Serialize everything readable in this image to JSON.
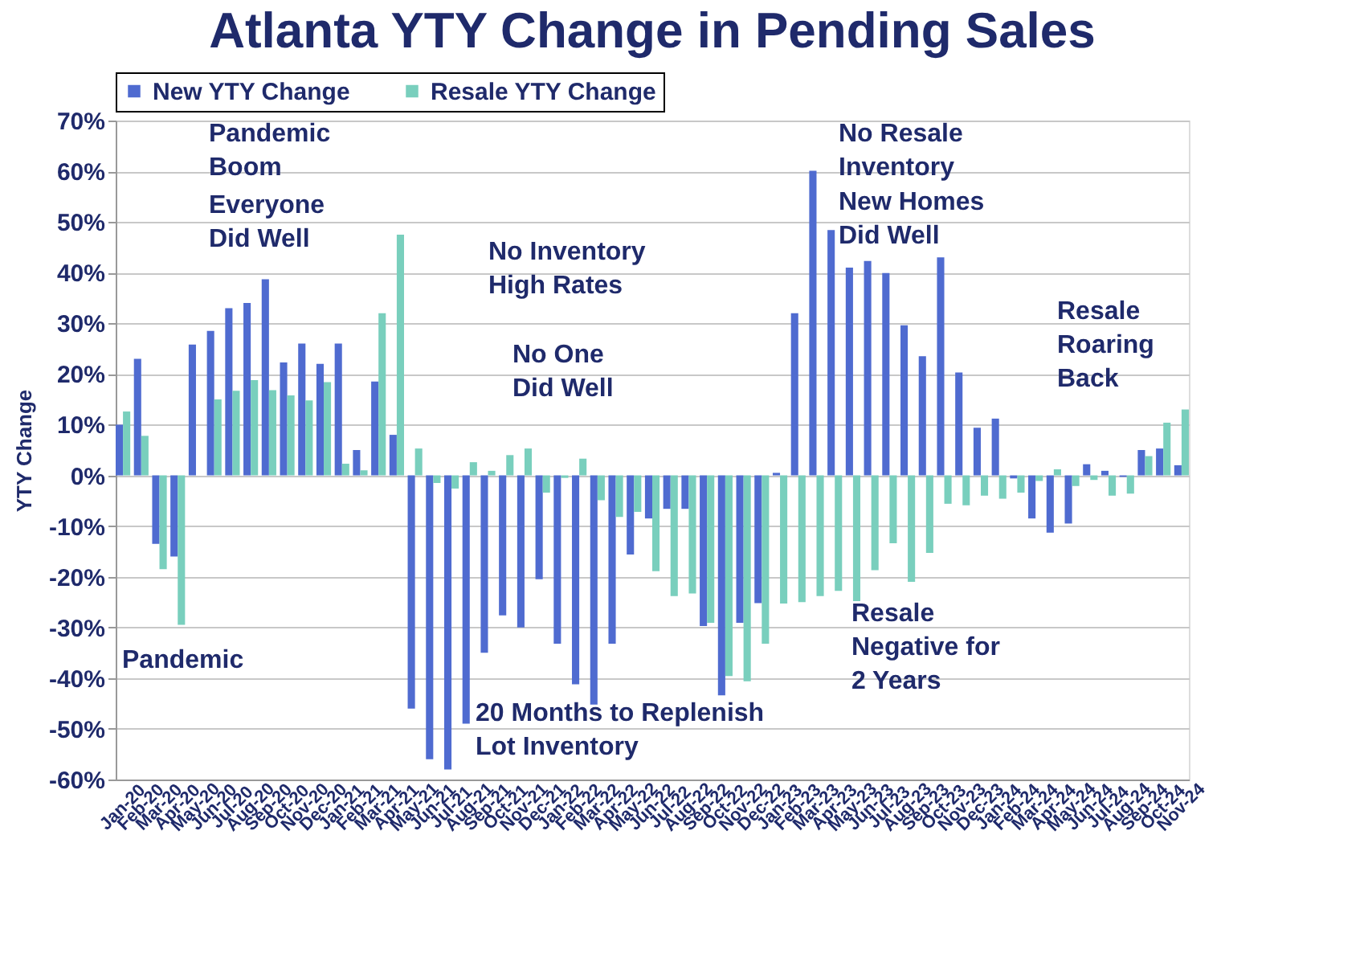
{
  "chart_data": {
    "type": "bar",
    "title": "Atlanta YTY Change in Pending Sales",
    "ylabel": "YTY Change",
    "categories": [
      "Jan-20",
      "Feb-20",
      "Mar-20",
      "Apr-20",
      "May-20",
      "Jun-20",
      "Jul-20",
      "Aug-20",
      "Sep-20",
      "Oct-20",
      "Nov-20",
      "Dec-20",
      "Jan-21",
      "Feb-21",
      "Mar-21",
      "Apr-21",
      "May-21",
      "Jun-21",
      "Jul-21",
      "Aug-21",
      "Sep-21",
      "Oct-21",
      "Nov-21",
      "Dec-21",
      "Jan-22",
      "Feb-22",
      "Mar-22",
      "Apr-22",
      "May-22",
      "Jun-22",
      "Jul-22",
      "Aug-22",
      "Sep-22",
      "Oct-22",
      "Nov-22",
      "Dec-22",
      "Jan-23",
      "Feb-23",
      "Mar-23",
      "Apr-23",
      "May-23",
      "Jun-23",
      "Jul-23",
      "Aug-23",
      "Sep-23",
      "Oct-23",
      "Nov-23",
      "Dec-23",
      "Jan-24",
      "Feb-24",
      "Mar-24",
      "Apr-24",
      "May-24",
      "Jun-24",
      "Jul-24",
      "Aug-24",
      "Sep-24",
      "Oct-24",
      "Nov-24"
    ],
    "series": [
      {
        "name": "New YTY Change",
        "color": "#4f6bd0",
        "values": [
          10,
          23,
          -13.5,
          -16,
          25.8,
          28.5,
          33,
          34,
          38.7,
          22.3,
          26,
          22,
          26,
          5,
          18.5,
          8,
          -46,
          -56,
          -58,
          -49,
          -35,
          -27.6,
          -30,
          -20.5,
          -33.2,
          -41.2,
          -45.2,
          -33.2,
          -15.6,
          -8.5,
          -6.6,
          -6.6,
          -29.7,
          -43.4,
          -29.1,
          -25.2,
          0.5,
          32,
          60.1,
          48.4,
          41,
          42.3,
          39.9,
          29.6,
          23.5,
          43,
          20.3,
          9.4,
          11.2,
          -0.6,
          -8.5,
          -11.3,
          -9.5,
          2.2,
          0.9,
          -0.3,
          5,
          5.3,
          2
        ]
      },
      {
        "name": "Resale YTY Change",
        "color": "#79cfbd",
        "values": [
          12.6,
          7.8,
          -18.5,
          -29.5,
          null,
          15,
          16.7,
          18.8,
          16.8,
          15.8,
          14.8,
          18.4,
          2.3,
          1,
          32,
          47.5,
          5.3,
          -1.5,
          -2.6,
          2.6,
          0.9,
          4,
          5.3,
          -3.4,
          -0.5,
          3.3,
          -4.9,
          -8.2,
          -7.2,
          -18.9,
          -23.8,
          -23.3,
          -29.1,
          -39.6,
          -40.6,
          -33.2,
          -25.3,
          -25,
          -23.8,
          -22.8,
          -24.8,
          -18.7,
          -13.4,
          -21,
          -15.3,
          -5.6,
          -5.9,
          -4,
          -4.6,
          -3.4,
          -1.1,
          1.2,
          -2.1,
          -0.9,
          -4,
          -3.6,
          3.8,
          10.4,
          13
        ]
      }
    ],
    "ylim": [
      -60,
      70
    ],
    "yticks": [
      {
        "value": -60,
        "label": "-60%"
      },
      {
        "value": -50,
        "label": "-50%"
      },
      {
        "value": -40,
        "label": "-40%"
      },
      {
        "value": -30,
        "label": "-30%"
      },
      {
        "value": -20,
        "label": "-20%"
      },
      {
        "value": -10,
        "label": "-10%"
      },
      {
        "value": 0,
        "label": "0%"
      },
      {
        "value": 10,
        "label": "10%"
      },
      {
        "value": 20,
        "label": "20%"
      },
      {
        "value": 30,
        "label": "30%"
      },
      {
        "value": 40,
        "label": "40%"
      },
      {
        "value": 50,
        "label": "50%"
      },
      {
        "value": 60,
        "label": "60%"
      },
      {
        "value": 70,
        "label": "70%"
      }
    ],
    "grid": "y",
    "legend": "top",
    "annotations": [
      "Pandemic\nBoom",
      "Everyone\nDid Well",
      "Pandemic",
      "No Inventory\nHigh Rates",
      "No One\nDid Well",
      "20 Months to Replenish\nLot Inventory",
      "No Resale\nInventory",
      "New Homes\nDid Well",
      "Resale\nNegative for\n2 Years",
      "Resale\nRoaring\nBack"
    ]
  }
}
